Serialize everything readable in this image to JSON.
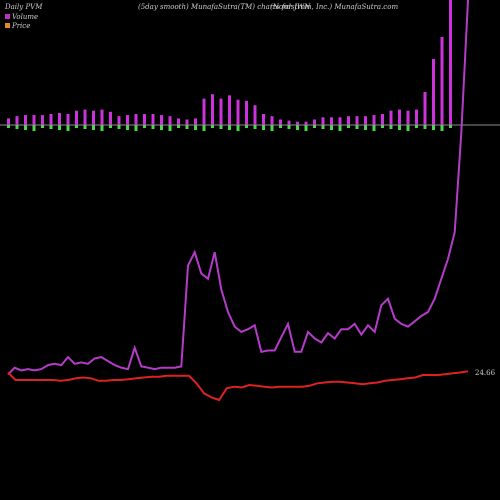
{
  "header": {
    "left": "Daily PVM",
    "mid": "(5day smooth) MunafaSutra(TM) charts for JWN",
    "right": "(Nordstrom, Inc.) MunafaSutra.com"
  },
  "legend": [
    {
      "label": "Volume",
      "color": "#c030c0"
    },
    {
      "label": "Price",
      "color": "#e08a2a"
    }
  ],
  "colors": {
    "volume_line": "#b43cc8",
    "volume_bar": "#cc33dd",
    "pos_bar": "#44dd44",
    "neg_bar": "#ee3333",
    "price_line": "#dd2222",
    "zero_line": "#bbbbbb"
  },
  "price_label": "24.66",
  "chart_data": {
    "type": "line",
    "series": [
      {
        "name": "Volume",
        "values": [
          8,
          13,
          11,
          12,
          11,
          12,
          15,
          16,
          15,
          21,
          16,
          17,
          16,
          20,
          21,
          18,
          15,
          13,
          12,
          28,
          14,
          13,
          12,
          13,
          13,
          13,
          14,
          90,
          100,
          84,
          80,
          100,
          72,
          55,
          44,
          40,
          42,
          45,
          25,
          26,
          26,
          36,
          46,
          25,
          25,
          40,
          35,
          32,
          39,
          35,
          42,
          42,
          46,
          38,
          45,
          40,
          60,
          65,
          50,
          46,
          44,
          48,
          52,
          55,
          65,
          80,
          95,
          115,
          190,
          530
        ]
      },
      {
        "name": "Price",
        "values": [
          24.5,
          23.6,
          23.6,
          23.6,
          23.6,
          23.6,
          23.6,
          23.5,
          23.6,
          23.8,
          23.9,
          23.8,
          23.5,
          23.5,
          23.6,
          23.6,
          23.7,
          23.8,
          23.9,
          24.0,
          24.0,
          24.1,
          24.1,
          24.1,
          24.1,
          23.2,
          22.0,
          21.5,
          21.2,
          22.6,
          22.8,
          22.7,
          23.0,
          22.9,
          22.8,
          22.7,
          22.8,
          22.8,
          22.8,
          22.8,
          22.9,
          23.2,
          23.3,
          23.4,
          23.4,
          23.3,
          23.2,
          23.1,
          23.2,
          23.3,
          23.5,
          23.6,
          23.7,
          23.8,
          23.9,
          24.2,
          24.2,
          24.2,
          24.3,
          24.4,
          24.5,
          24.66
        ]
      }
    ],
    "pvm_bars": {
      "volume": [
        6,
        8,
        9,
        9,
        9,
        10,
        11,
        10,
        13,
        14,
        13,
        14,
        12,
        8,
        9,
        10,
        10,
        10,
        9,
        8,
        6,
        5,
        6,
        24,
        28,
        24,
        27,
        23,
        22,
        18,
        10,
        8,
        5,
        4,
        3,
        3,
        5,
        7,
        7,
        7,
        8,
        8,
        8,
        9,
        10,
        13,
        14,
        13,
        14,
        30,
        60,
        80,
        200
      ],
      "direction": [
        0,
        -1,
        -1,
        -1,
        -1,
        -1,
        -1,
        -1,
        -1,
        -1,
        -1,
        -1,
        -1,
        -1,
        -1,
        -1,
        -1,
        -1,
        -1,
        -1,
        -1,
        -1,
        -1,
        -1,
        -1,
        -1,
        -1,
        -1,
        -1,
        -1,
        -1,
        -1,
        -1,
        -1,
        -1,
        -1,
        -1,
        -1,
        -1,
        -1,
        -1,
        -1,
        -1,
        -1,
        -1,
        -1,
        -1,
        -1,
        -1,
        -1,
        -1,
        -1,
        -1
      ]
    }
  }
}
